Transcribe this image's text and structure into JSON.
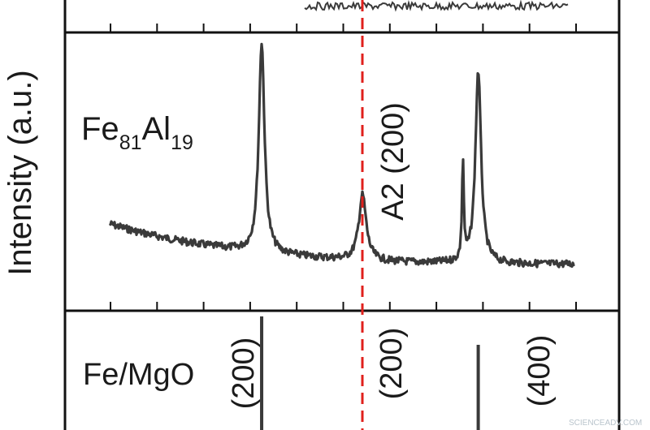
{
  "chart_data": {
    "type": "line",
    "ylabel": "Intensity (a.u.)",
    "reference_line": {
      "style": "dashed",
      "color": "#e0201c",
      "position_note": "A2 (200)"
    },
    "colors": {
      "trace": "#3a3a3a",
      "frame": "#111111",
      "reference": "#e0201c"
    },
    "panels": [
      {
        "id": "top",
        "sample_label": "",
        "note": "partially visible panel, cropped at top"
      },
      {
        "id": "middle",
        "sample_label": {
          "base1": "Fe",
          "sub1": "81",
          "base2": "Al",
          "sub2": "19"
        },
        "annotations": [
          "A2 (200)"
        ],
        "peaks": [
          {
            "relative_position": 0.327,
            "relative_height": 1.0
          },
          {
            "relative_position": 0.544,
            "relative_height": 0.3
          },
          {
            "relative_position": 0.76,
            "relative_height": 0.45
          },
          {
            "relative_position": 0.793,
            "relative_height": 0.87
          }
        ]
      },
      {
        "id": "bottom",
        "sample_label": "Fe/MgO",
        "annotations": [
          "(200)",
          "(200)",
          "(400)"
        ],
        "peaks": [
          {
            "relative_position": 0.327
          },
          {
            "relative_position": 0.793
          }
        ]
      }
    ],
    "watermark": "SCIENCEADV.COM"
  }
}
